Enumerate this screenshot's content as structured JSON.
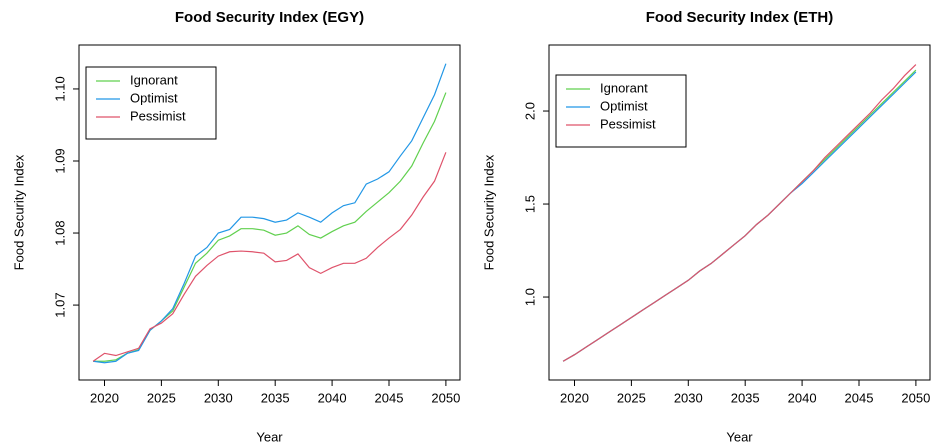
{
  "chart_data": [
    {
      "type": "line",
      "title": "Food Security Index (EGY)",
      "xlabel": "Year",
      "ylabel": "Food Security Index",
      "x": [
        2019,
        2020,
        2021,
        2022,
        2023,
        2024,
        2025,
        2026,
        2027,
        2028,
        2029,
        2030,
        2031,
        2032,
        2033,
        2034,
        2035,
        2036,
        2037,
        2038,
        2039,
        2040,
        2041,
        2042,
        2043,
        2044,
        2045,
        2046,
        2047,
        2048,
        2049,
        2050
      ],
      "xlim": [
        2017.76,
        2051.24
      ],
      "xticks": [
        2020,
        2025,
        2030,
        2035,
        2040,
        2045,
        2050
      ],
      "ylim": [
        1.0596,
        1.1061
      ],
      "yticks": [
        1.07,
        1.08,
        1.09,
        {
          "value": 1.1,
          "label": "1.10"
        }
      ],
      "legend": "topleft",
      "series": [
        {
          "name": "Ignorant",
          "color": "#61D04F",
          "values": [
            1.0622,
            1.0622,
            1.0624,
            1.0633,
            1.0638,
            1.0665,
            1.0678,
            1.0692,
            1.0725,
            1.0758,
            1.0772,
            1.079,
            1.0796,
            1.0806,
            1.0806,
            1.0804,
            1.0797,
            1.08,
            1.081,
            1.0798,
            1.0793,
            1.0802,
            1.081,
            1.0815,
            1.083,
            1.0843,
            1.0856,
            1.0872,
            1.0893,
            1.0925,
            1.0955,
            1.0995
          ]
        },
        {
          "name": "Optimist",
          "color": "#2297E6",
          "values": [
            1.0622,
            1.062,
            1.0622,
            1.0633,
            1.0637,
            1.0665,
            1.0678,
            1.0695,
            1.073,
            1.0768,
            1.078,
            1.08,
            1.0805,
            1.0822,
            1.0822,
            1.082,
            1.0815,
            1.0818,
            1.0828,
            1.0822,
            1.0815,
            1.0828,
            1.0838,
            1.0842,
            1.0868,
            1.0875,
            1.0885,
            1.0907,
            1.0928,
            1.096,
            1.0992,
            1.1035
          ]
        },
        {
          "name": "Pessimist",
          "color": "#DF536B",
          "values": [
            1.0622,
            1.0633,
            1.063,
            1.0635,
            1.064,
            1.0667,
            1.0675,
            1.0688,
            1.0715,
            1.074,
            1.0755,
            1.0768,
            1.0774,
            1.0775,
            1.0774,
            1.0772,
            1.076,
            1.0762,
            1.0771,
            1.0752,
            1.0744,
            1.0752,
            1.0758,
            1.0758,
            1.0765,
            1.078,
            1.0793,
            1.0805,
            1.0825,
            1.085,
            1.0872,
            1.0912
          ]
        }
      ]
    },
    {
      "type": "line",
      "title": "Food Security Index (ETH)",
      "xlabel": "Year",
      "ylabel": "Food Security Index",
      "x": [
        2019,
        2020,
        2021,
        2022,
        2023,
        2024,
        2025,
        2026,
        2027,
        2028,
        2029,
        2030,
        2031,
        2032,
        2033,
        2034,
        2035,
        2036,
        2037,
        2038,
        2039,
        2040,
        2041,
        2042,
        2043,
        2044,
        2045,
        2046,
        2047,
        2048,
        2049,
        2050
      ],
      "xlim": [
        2017.76,
        2051.24
      ],
      "xticks": [
        2020,
        2025,
        2030,
        2035,
        2040,
        2045,
        2050
      ],
      "ylim": [
        0.554,
        2.355
      ],
      "yticks": [
        {
          "value": 1,
          "label": "1.0"
        },
        1.5,
        {
          "value": 2,
          "label": "2.0"
        }
      ],
      "legend": "topleft",
      "series": [
        {
          "name": "Ignorant",
          "color": "#61D04F",
          "values": [
            0.655,
            0.69,
            0.73,
            0.77,
            0.81,
            0.85,
            0.89,
            0.93,
            0.97,
            1.01,
            1.05,
            1.09,
            1.14,
            1.18,
            1.23,
            1.28,
            1.33,
            1.39,
            1.44,
            1.5,
            1.56,
            1.62,
            1.68,
            1.74,
            1.8,
            1.86,
            1.92,
            1.98,
            2.04,
            2.1,
            2.16,
            2.22
          ]
        },
        {
          "name": "Optimist",
          "color": "#2297E6",
          "values": [
            0.655,
            0.69,
            0.73,
            0.77,
            0.81,
            0.85,
            0.89,
            0.93,
            0.97,
            1.01,
            1.05,
            1.09,
            1.14,
            1.18,
            1.23,
            1.28,
            1.33,
            1.39,
            1.44,
            1.5,
            1.56,
            1.61,
            1.67,
            1.73,
            1.79,
            1.85,
            1.91,
            1.97,
            2.03,
            2.09,
            2.15,
            2.21
          ]
        },
        {
          "name": "Pessimist",
          "color": "#DF536B",
          "values": [
            0.655,
            0.69,
            0.73,
            0.77,
            0.81,
            0.85,
            0.89,
            0.93,
            0.97,
            1.01,
            1.05,
            1.09,
            1.14,
            1.18,
            1.23,
            1.28,
            1.33,
            1.39,
            1.44,
            1.5,
            1.56,
            1.62,
            1.68,
            1.75,
            1.81,
            1.87,
            1.93,
            1.99,
            2.06,
            2.12,
            2.19,
            2.25
          ]
        }
      ]
    }
  ]
}
